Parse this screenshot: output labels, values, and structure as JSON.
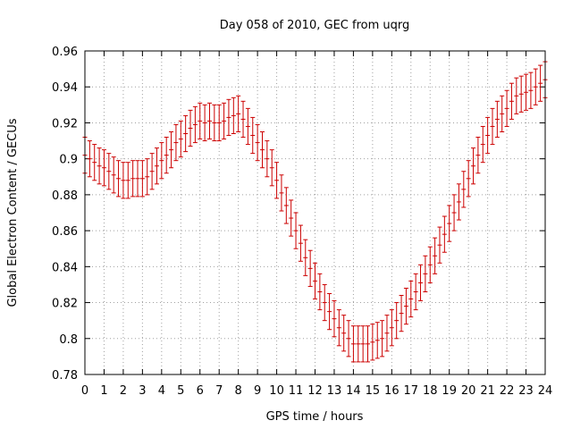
{
  "chart_data": {
    "type": "line",
    "title": "Day 058 of 2010, GEC from uqrg",
    "xlabel": "GPS time / hours",
    "ylabel": "Global Electron Content / GECUs",
    "xlim": [
      0,
      24
    ],
    "ylim": [
      0.78,
      0.96
    ],
    "xticks": [
      0,
      1,
      2,
      3,
      4,
      5,
      6,
      7,
      8,
      9,
      10,
      11,
      12,
      13,
      14,
      15,
      16,
      17,
      18,
      19,
      20,
      21,
      22,
      23,
      24
    ],
    "yticks": [
      0.78,
      0.8,
      0.82,
      0.84,
      0.86,
      0.88,
      0.9,
      0.92,
      0.94,
      0.96
    ],
    "ytick_labels": [
      "0.78",
      "0.8",
      "0.82",
      "0.84",
      "0.86",
      "0.88",
      "0.9",
      "0.92",
      "0.94",
      "0.96"
    ],
    "grid": true,
    "legend": "none",
    "color": "#cc0000",
    "error": 0.01,
    "series": [
      {
        "x": [
          0,
          0.25,
          0.5,
          0.75,
          1,
          1.25,
          1.5,
          1.75,
          2,
          2.25,
          2.5,
          2.75,
          3,
          3.25,
          3.5,
          3.75,
          4,
          4.25,
          4.5,
          4.75,
          5,
          5.25,
          5.5,
          5.75,
          6,
          6.25,
          6.5,
          6.75,
          7,
          7.25,
          7.5,
          7.75,
          8,
          8.25,
          8.5,
          8.75,
          9,
          9.25,
          9.5,
          9.75,
          10,
          10.25,
          10.5,
          10.75,
          11,
          11.25,
          11.5,
          11.75,
          12,
          12.25,
          12.5,
          12.75,
          13,
          13.25,
          13.5,
          13.75,
          14,
          14.25,
          14.5,
          14.75,
          15,
          15.25,
          15.5,
          15.75,
          16,
          16.25,
          16.5,
          16.75,
          17,
          17.25,
          17.5,
          17.75,
          18,
          18.25,
          18.5,
          18.75,
          19,
          19.25,
          19.5,
          19.75,
          20,
          20.25,
          20.5,
          20.75,
          21,
          21.25,
          21.5,
          21.75,
          22,
          22.25,
          22.5,
          22.75,
          23,
          23.25,
          23.5,
          23.75,
          24
        ],
        "y": [
          0.902,
          0.9,
          0.898,
          0.896,
          0.895,
          0.893,
          0.891,
          0.889,
          0.888,
          0.888,
          0.889,
          0.889,
          0.889,
          0.89,
          0.893,
          0.896,
          0.899,
          0.902,
          0.905,
          0.909,
          0.911,
          0.914,
          0.917,
          0.919,
          0.921,
          0.92,
          0.921,
          0.92,
          0.92,
          0.921,
          0.923,
          0.924,
          0.925,
          0.922,
          0.918,
          0.913,
          0.909,
          0.905,
          0.9,
          0.895,
          0.888,
          0.881,
          0.874,
          0.867,
          0.86,
          0.853,
          0.845,
          0.839,
          0.832,
          0.826,
          0.82,
          0.815,
          0.811,
          0.806,
          0.803,
          0.8,
          0.797,
          0.797,
          0.797,
          0.797,
          0.798,
          0.799,
          0.8,
          0.803,
          0.806,
          0.81,
          0.814,
          0.818,
          0.822,
          0.826,
          0.831,
          0.836,
          0.841,
          0.846,
          0.852,
          0.858,
          0.864,
          0.87,
          0.876,
          0.883,
          0.889,
          0.896,
          0.902,
          0.908,
          0.913,
          0.918,
          0.922,
          0.925,
          0.928,
          0.932,
          0.935,
          0.936,
          0.937,
          0.938,
          0.94,
          0.942,
          0.944
        ]
      }
    ]
  }
}
